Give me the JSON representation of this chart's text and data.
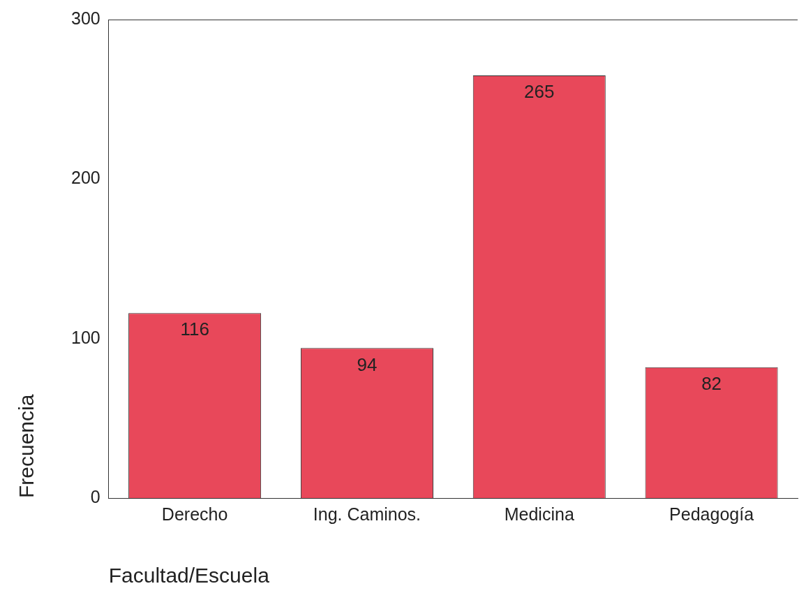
{
  "chart_data": {
    "type": "bar",
    "xlabel": "Facultad/Escuela",
    "ylabel": "Frecuencia",
    "categories": [
      "Derecho",
      "Ing. Caminos.",
      "Medicina",
      "Pedagogía"
    ],
    "values": [
      116,
      94,
      265,
      82
    ],
    "color": "#e8485a",
    "ylim": [
      0,
      300
    ],
    "yticks": [
      0,
      100,
      200,
      300
    ],
    "grid": false,
    "legend": false,
    "data_labels": true
  }
}
